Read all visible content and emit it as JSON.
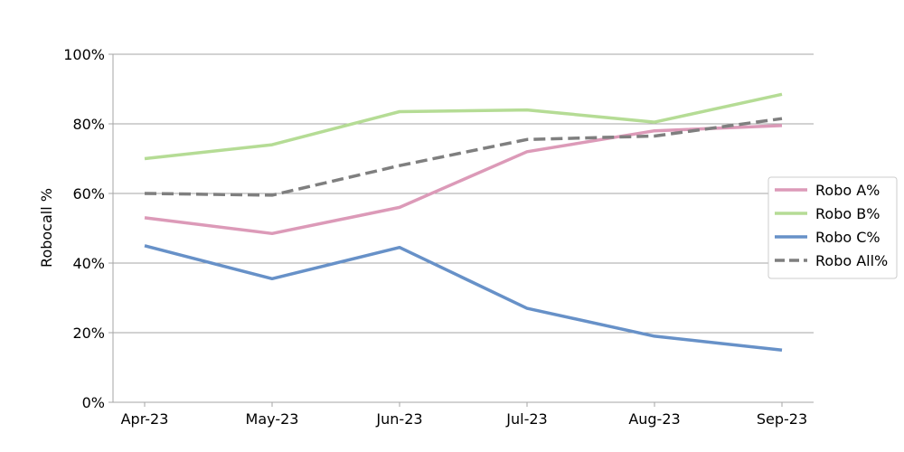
{
  "chart_data": {
    "type": "line",
    "title": "",
    "xlabel": "",
    "ylabel": "Robocall %",
    "categories": [
      "Apr-23",
      "May-23",
      "Jun-23",
      "Jul-23",
      "Aug-23",
      "Sep-23"
    ],
    "ylim": [
      0,
      100
    ],
    "yticks": [
      "0%",
      "20%",
      "40%",
      "60%",
      "80%",
      "100%"
    ],
    "grid": "horizontal",
    "legend_position": "right",
    "series": [
      {
        "name": "Robo A%",
        "color": "#dc9ab8",
        "dash": "solid",
        "values": [
          53,
          48.5,
          56,
          72,
          78,
          79.5
        ]
      },
      {
        "name": "Robo B%",
        "color": "#b5dc95",
        "dash": "solid",
        "values": [
          70,
          74,
          83.5,
          84,
          80.5,
          88.5
        ]
      },
      {
        "name": "Robo C%",
        "color": "#6791c8",
        "dash": "solid",
        "values": [
          45,
          35.5,
          44.5,
          27,
          19,
          15
        ]
      },
      {
        "name": "Robo All%",
        "color": "#7f7f7f",
        "dash": "dashed",
        "values": [
          60,
          59.5,
          68,
          75.5,
          76.5,
          81.5
        ]
      }
    ]
  }
}
